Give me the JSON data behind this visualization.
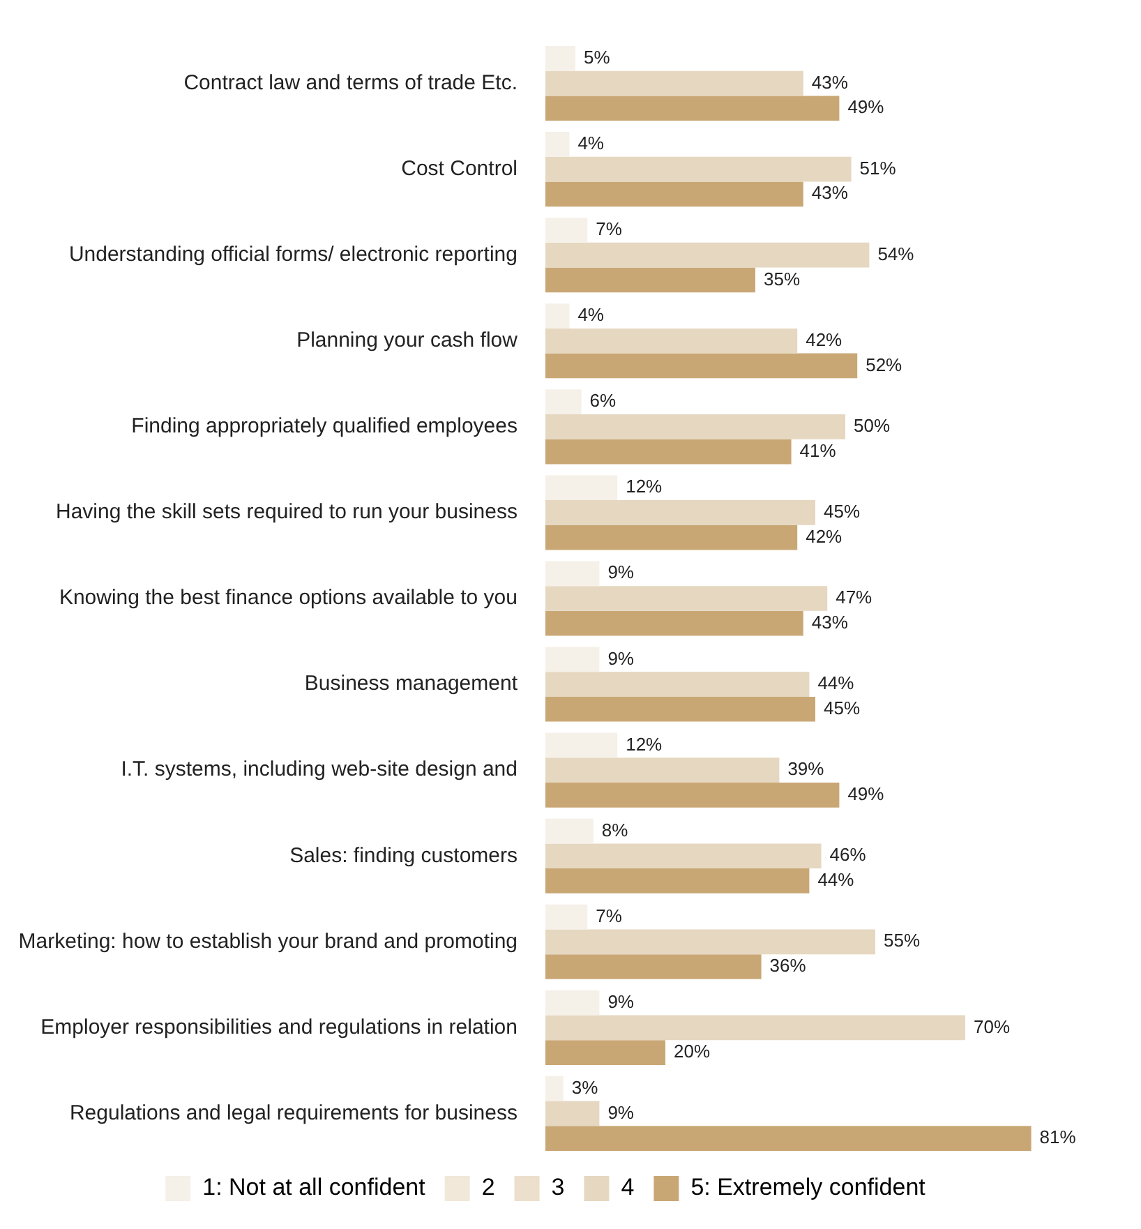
{
  "chart_data": {
    "type": "bar",
    "orientation": "horizontal",
    "categories": [
      "Contract law and terms of trade Etc.",
      "Cost Control",
      "Understanding official forms/ electronic reporting",
      "Planning your cash flow",
      "Finding appropriately qualified employees",
      "Having the skill sets required to run your business",
      "Knowing the best finance options available to you",
      "Business management",
      "I.T. systems, including web-site design and",
      "Sales: finding customers",
      "Marketing: how to establish your brand and promoting",
      "Employer responsibilities and regulations in relation",
      "Regulations and legal requirements for business"
    ],
    "series": [
      {
        "name": "1: Not at all confident",
        "color": "#f5f0e8",
        "values": [
          5,
          4,
          7,
          4,
          6,
          12,
          9,
          9,
          12,
          8,
          7,
          9,
          3
        ],
        "value_labels": [
          "5%",
          "4%",
          "7%",
          "4%",
          "6%",
          "12%",
          "9%",
          "9%",
          "12%",
          "8%",
          "7%",
          "9%",
          "3%"
        ]
      },
      {
        "name": "2",
        "color": "#f1e8da",
        "values": [
          null,
          null,
          null,
          null,
          null,
          null,
          null,
          null,
          null,
          null,
          null,
          null,
          null
        ]
      },
      {
        "name": "3",
        "color": "#ecdfcb",
        "values": [
          null,
          null,
          null,
          null,
          null,
          null,
          null,
          null,
          null,
          null,
          null,
          null,
          null
        ]
      },
      {
        "name": "4",
        "color": "#e5d7c0",
        "values": [
          43,
          51,
          54,
          42,
          50,
          45,
          47,
          44,
          39,
          46,
          55,
          70,
          9
        ],
        "value_labels": [
          "43%",
          "51%",
          "54%",
          "42%",
          "50%",
          "45%",
          "47%",
          "44%",
          "39%",
          "46%",
          "55%",
          "70%",
          "9%"
        ]
      },
      {
        "name": "5: Extremely confident",
        "color": "#c9a775",
        "values": [
          49,
          43,
          35,
          52,
          41,
          42,
          43,
          45,
          49,
          44,
          36,
          20,
          81
        ],
        "value_labels": [
          "49%",
          "43%",
          "35%",
          "52%",
          "41%",
          "42%",
          "43%",
          "45%",
          "49%",
          "44%",
          "36%",
          "20%",
          "81%"
        ]
      }
    ],
    "legend": "bottom",
    "grid": false,
    "tick_labels": "y"
  }
}
